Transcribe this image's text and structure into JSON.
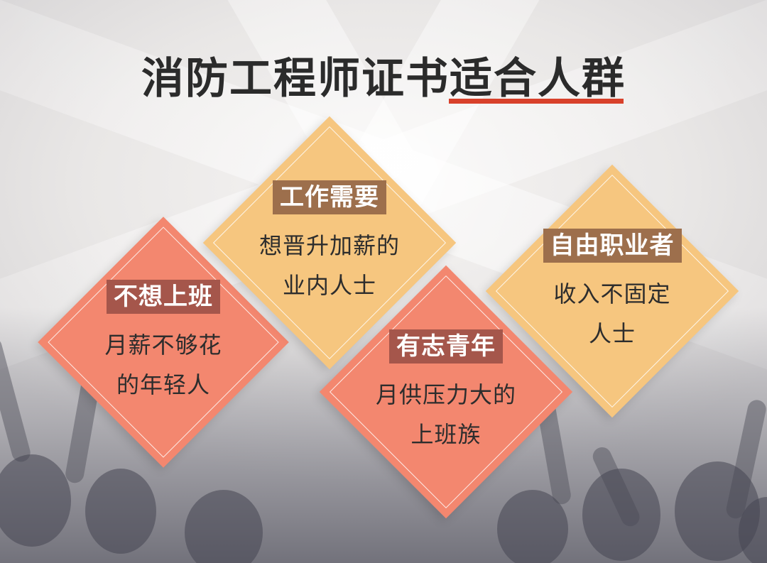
{
  "title": "消防工程师证书适合人群",
  "colors": {
    "accent_underline": "#d8412b",
    "yellow_card": "#f6c67f",
    "red_card": "#f3876f",
    "label_brown": "#9d6f4c",
    "label_dark_red": "#a5564b"
  },
  "cards": [
    {
      "label": "不想上班",
      "desc_line1": "月薪不够花",
      "desc_line2": "的年轻人",
      "color": "red"
    },
    {
      "label": "工作需要",
      "desc_line1": "想晋升加薪的",
      "desc_line2": "业内人士",
      "color": "yellow"
    },
    {
      "label": "有志青年",
      "desc_line1": "月供压力大的",
      "desc_line2": "上班族",
      "color": "red"
    },
    {
      "label": "自由职业者",
      "desc_line1": "收入不固定",
      "desc_line2": "人士",
      "color": "yellow"
    }
  ]
}
